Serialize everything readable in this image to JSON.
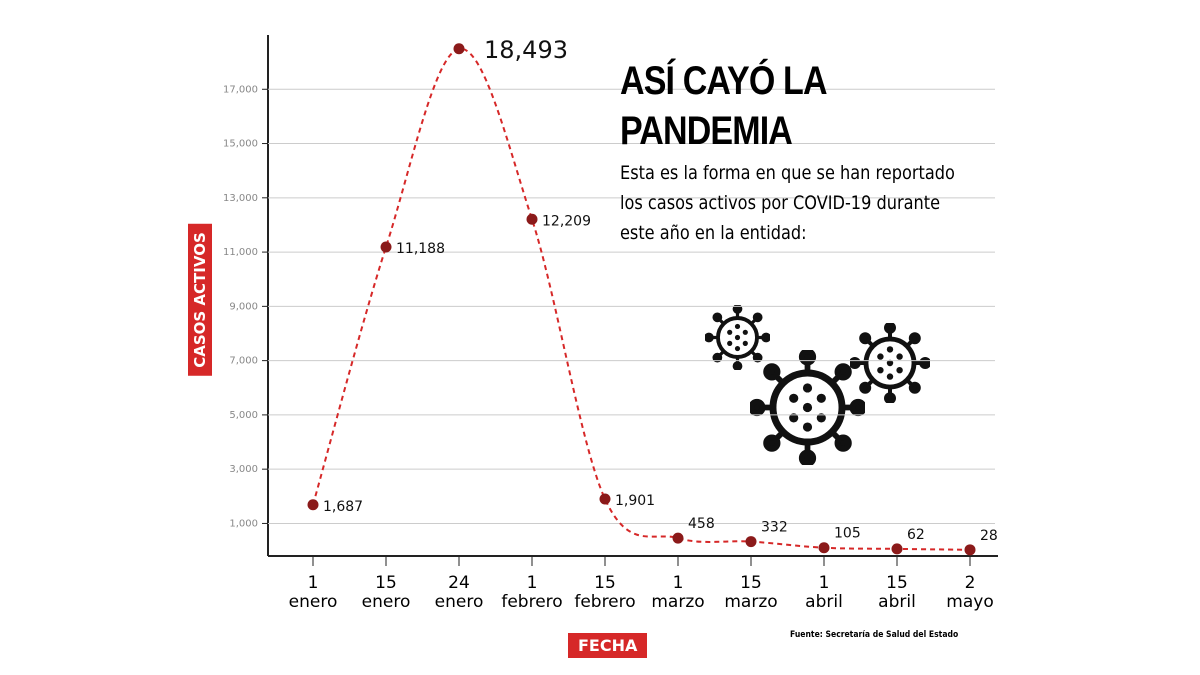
{
  "chart_data": {
    "type": "line",
    "title": "ASÍ CAYÓ LA PANDEMIA",
    "subtitle": "Esta es la forma en que se han reportado los casos activos por COVID-19 durante este año en la entidad:",
    "x_label": "FECHA",
    "y_label": "CASOS ACTIVOS",
    "source": "Fuente: Secretaría de Salud del Estado",
    "categories": [
      "1 enero",
      "15 enero",
      "24 enero",
      "1 febrero",
      "15 febrero",
      "1 marzo",
      "15 marzo",
      "1 abril",
      "15 abril",
      "2 mayo"
    ],
    "series": [
      {
        "color": "#d62828",
        "values": [
          1687,
          11188,
          18493,
          12209,
          1901,
          458,
          332,
          105,
          62,
          28
        ],
        "value_labels": [
          "1,687",
          "11,188",
          "18,493",
          "12,209",
          "1,901",
          "458",
          "332",
          "105",
          "62",
          "28"
        ]
      }
    ],
    "ylim": [
      -200,
      19000
    ],
    "yticks": [
      {
        "value": 1000,
        "label": "1,000"
      },
      {
        "value": 3000,
        "label": "3,000"
      },
      {
        "value": 5000,
        "label": "5,000"
      },
      {
        "value": 7000,
        "label": "7,000"
      },
      {
        "value": 9000,
        "label": "9,000"
      },
      {
        "value": 11000,
        "label": "11,000"
      },
      {
        "value": 13000,
        "label": "13,000"
      },
      {
        "value": 15000,
        "label": "15,000"
      },
      {
        "value": 17000,
        "label": "17,000"
      }
    ],
    "grid": true
  }
}
